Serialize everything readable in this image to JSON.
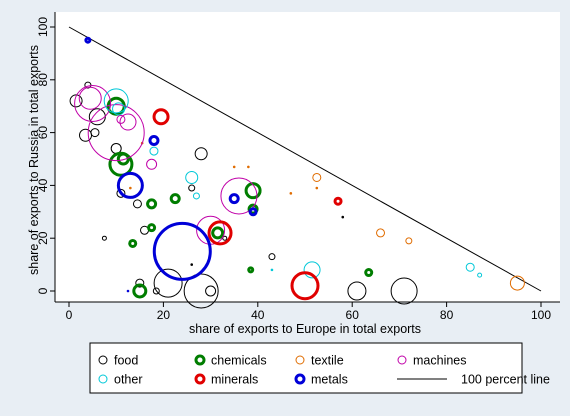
{
  "chart_data": {
    "type": "scatter",
    "xlabel": "share of exports to Europe in total exports",
    "ylabel": "share of exports to Russia in total exports",
    "xlim": [
      0,
      100
    ],
    "ylim": [
      0,
      100
    ],
    "xticks": [
      "0",
      "20",
      "40",
      "60",
      "80",
      "100"
    ],
    "yticks": [
      "0",
      "20",
      "40",
      "60",
      "80",
      "100"
    ],
    "grid": false,
    "legend_position": "bottom",
    "reference_line": {
      "name": "100 percent line",
      "points": [
        [
          0,
          100
        ],
        [
          100,
          0
        ]
      ],
      "color": "#000000"
    },
    "series": [
      {
        "name": "food",
        "color": "#000000",
        "points": [
          {
            "x": 1.5,
            "y": 72,
            "r": 6
          },
          {
            "x": 5.5,
            "y": 60,
            "r": 4
          },
          {
            "x": 6,
            "y": 66,
            "r": 8
          },
          {
            "x": 3.5,
            "y": 59,
            "r": 6
          },
          {
            "x": 4,
            "y": 78,
            "r": 3
          },
          {
            "x": 10,
            "y": 54,
            "r": 5
          },
          {
            "x": 11,
            "y": 37,
            "r": 4
          },
          {
            "x": 14.5,
            "y": 33,
            "r": 4
          },
          {
            "x": 16,
            "y": 23,
            "r": 4
          },
          {
            "x": 7.5,
            "y": 20,
            "r": 2
          },
          {
            "x": 15,
            "y": 3,
            "r": 4
          },
          {
            "x": 18.5,
            "y": 0,
            "r": 3
          },
          {
            "x": 21,
            "y": 3,
            "r": 14
          },
          {
            "x": 28,
            "y": 0,
            "r": 17
          },
          {
            "x": 30,
            "y": 0,
            "r": 5
          },
          {
            "x": 28,
            "y": 52,
            "r": 6
          },
          {
            "x": 26,
            "y": 39,
            "r": 3
          },
          {
            "x": 33,
            "y": 20,
            "r": 2
          },
          {
            "x": 43,
            "y": 13,
            "r": 3
          },
          {
            "x": 61,
            "y": 0,
            "r": 9
          },
          {
            "x": 71,
            "y": 0,
            "r": 13
          },
          {
            "x": 58,
            "y": 28,
            "r": 1
          },
          {
            "x": 26,
            "y": 10,
            "r": 1
          }
        ]
      },
      {
        "name": "chemicals",
        "color": "#007d00",
        "points": [
          {
            "x": 10,
            "y": 70,
            "r": 8
          },
          {
            "x": 11,
            "y": 48,
            "r": 11
          },
          {
            "x": 11.5,
            "y": 50,
            "r": 5
          },
          {
            "x": 17.5,
            "y": 33,
            "r": 4
          },
          {
            "x": 22.5,
            "y": 35,
            "r": 4
          },
          {
            "x": 13.5,
            "y": 18,
            "r": 3
          },
          {
            "x": 17.5,
            "y": 24,
            "r": 3
          },
          {
            "x": 31.5,
            "y": 22,
            "r": 5
          },
          {
            "x": 39,
            "y": 38,
            "r": 7
          },
          {
            "x": 39,
            "y": 31,
            "r": 4
          },
          {
            "x": 38.5,
            "y": 8,
            "r": 2
          },
          {
            "x": 15,
            "y": 0,
            "r": 6
          },
          {
            "x": 63.5,
            "y": 7,
            "r": 3
          }
        ]
      },
      {
        "name": "textile",
        "color": "#e06c00",
        "points": [
          {
            "x": 52.5,
            "y": 43,
            "r": 4
          },
          {
            "x": 66,
            "y": 22,
            "r": 4
          },
          {
            "x": 72,
            "y": 19,
            "r": 3
          },
          {
            "x": 95,
            "y": 3,
            "r": 7
          },
          {
            "x": 35,
            "y": 47,
            "r": 1
          },
          {
            "x": 38,
            "y": 47,
            "r": 1
          },
          {
            "x": 47,
            "y": 37,
            "r": 1
          },
          {
            "x": 52.5,
            "y": 39,
            "r": 1
          },
          {
            "x": 13,
            "y": 39,
            "r": 1
          },
          {
            "x": 15.5,
            "y": 56,
            "r": 1
          }
        ]
      },
      {
        "name": "machines",
        "color": "#c000a8",
        "points": [
          {
            "x": 10,
            "y": 60,
            "r": 28
          },
          {
            "x": 5,
            "y": 71,
            "r": 18
          },
          {
            "x": 4.5,
            "y": 73,
            "r": 11
          },
          {
            "x": 12.5,
            "y": 64,
            "r": 8
          },
          {
            "x": 11,
            "y": 65,
            "r": 4
          },
          {
            "x": 17.5,
            "y": 48,
            "r": 5
          },
          {
            "x": 30,
            "y": 23,
            "r": 14
          },
          {
            "x": 36,
            "y": 36,
            "r": 18
          }
        ]
      },
      {
        "name": "other",
        "color": "#00c8d8",
        "points": [
          {
            "x": 10,
            "y": 72,
            "r": 12
          },
          {
            "x": 10.5,
            "y": 69,
            "r": 6
          },
          {
            "x": 18,
            "y": 53,
            "r": 4
          },
          {
            "x": 26,
            "y": 43,
            "r": 6
          },
          {
            "x": 27,
            "y": 36,
            "r": 3
          },
          {
            "x": 51.5,
            "y": 8,
            "r": 8
          },
          {
            "x": 85,
            "y": 9,
            "r": 4
          },
          {
            "x": 87,
            "y": 6,
            "r": 2
          },
          {
            "x": 43,
            "y": 8,
            "r": 1
          }
        ]
      },
      {
        "name": "minerals",
        "color": "#e00000",
        "points": [
          {
            "x": 19.5,
            "y": 66,
            "r": 7
          },
          {
            "x": 32,
            "y": 22,
            "r": 11
          },
          {
            "x": 50,
            "y": 2,
            "r": 13
          },
          {
            "x": 57,
            "y": 34,
            "r": 3
          }
        ]
      },
      {
        "name": "metals",
        "color": "#0000d8",
        "points": [
          {
            "x": 24,
            "y": 15,
            "r": 28
          },
          {
            "x": 13,
            "y": 40,
            "r": 12
          },
          {
            "x": 18,
            "y": 57,
            "r": 4
          },
          {
            "x": 35,
            "y": 35,
            "r": 4
          },
          {
            "x": 39,
            "y": 30,
            "r": 3
          },
          {
            "x": 4,
            "y": 95,
            "r": 2
          },
          {
            "x": 12.5,
            "y": 0,
            "r": 1
          }
        ]
      }
    ]
  },
  "legend": [
    {
      "key": "food",
      "label": "food",
      "color": "#000000",
      "kind": "circle",
      "stroke": 1
    },
    {
      "key": "chemicals",
      "label": "chemicals",
      "color": "#007d00",
      "kind": "circle",
      "stroke": 3
    },
    {
      "key": "textile",
      "label": "textile",
      "color": "#e06c00",
      "kind": "circle",
      "stroke": 1
    },
    {
      "key": "machines",
      "label": "machines",
      "color": "#c000a8",
      "kind": "circle",
      "stroke": 1
    },
    {
      "key": "other",
      "label": "other",
      "color": "#00c8d8",
      "kind": "circle",
      "stroke": 1
    },
    {
      "key": "minerals",
      "label": "minerals",
      "color": "#e00000",
      "kind": "circle",
      "stroke": 3
    },
    {
      "key": "metals",
      "label": "metals",
      "color": "#0000d8",
      "kind": "circle",
      "stroke": 3
    },
    {
      "key": "line",
      "label": "100 percent line",
      "color": "#000000",
      "kind": "line",
      "stroke": 1
    }
  ]
}
